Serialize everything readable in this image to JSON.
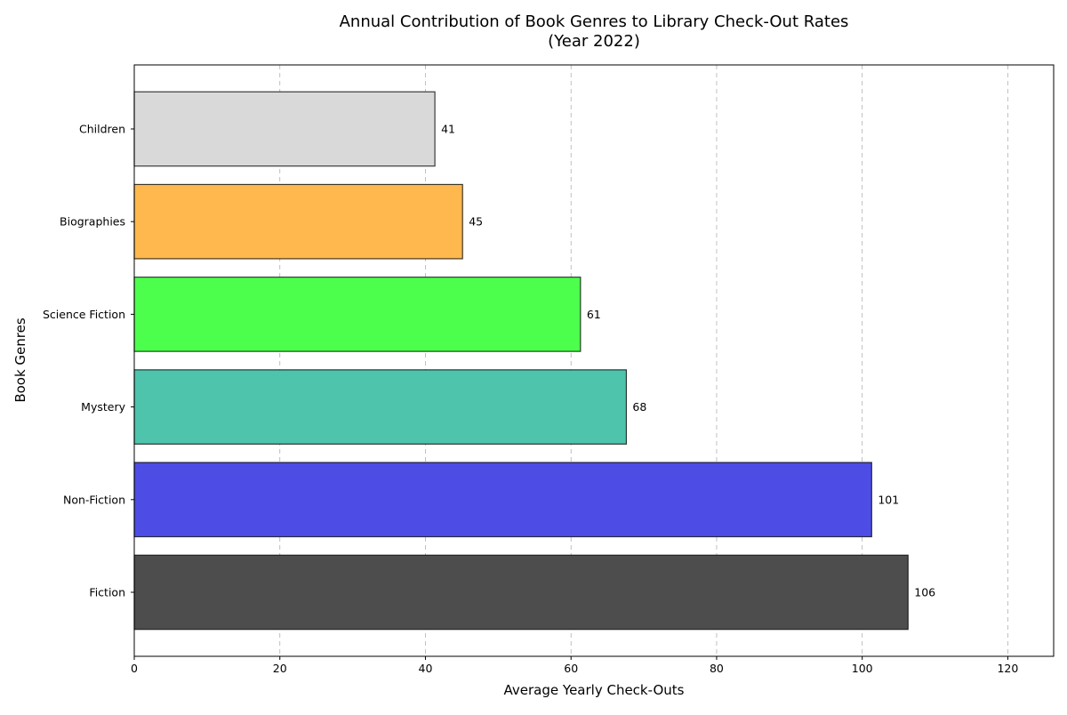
{
  "chart_data": {
    "type": "bar",
    "orientation": "horizontal",
    "title": "Annual Contribution of Book Genres to Library Check-Out Rates",
    "subtitle": "(Year 2022)",
    "xlabel": "Average Yearly Check-Outs",
    "ylabel": "Book Genres",
    "xlim": [
      0,
      126.3
    ],
    "xticks": [
      0,
      20,
      40,
      60,
      80,
      100,
      120
    ],
    "grid": {
      "x": true,
      "y": false
    },
    "categories": [
      "Fiction",
      "Non-Fiction",
      "Mystery",
      "Science Fiction",
      "Biographies",
      "Children"
    ],
    "values": [
      106.3,
      101.3,
      67.6,
      61.3,
      45.1,
      41.3
    ],
    "data_labels": [
      "106",
      "101",
      "68",
      "61",
      "45",
      "41"
    ],
    "colors": [
      "#4d4d4d",
      "#4d4de6",
      "#4dc4ab",
      "#4dff4d",
      "#ffb84d",
      "#d9d9d9"
    ]
  }
}
